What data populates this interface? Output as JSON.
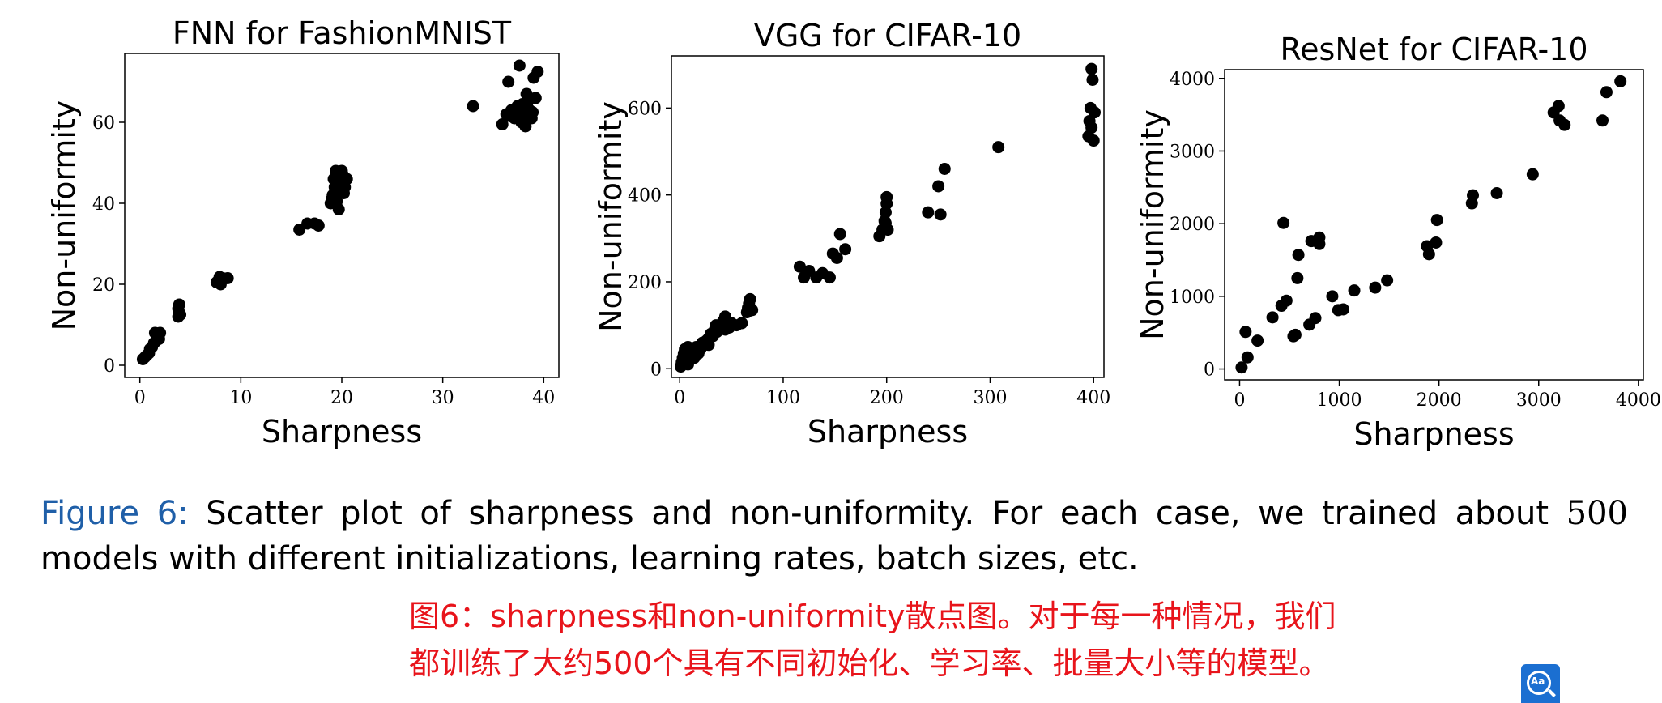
{
  "chart_data": [
    {
      "type": "scatter",
      "title": "FNN for FashionMNIST",
      "xlabel": "Sharpness",
      "ylabel": "Non-uniformity",
      "xlim": [
        -1.5,
        41.5
      ],
      "ylim": [
        -3,
        77
      ],
      "xticks": [
        0,
        10,
        20,
        30,
        40
      ],
      "yticks": [
        0,
        20,
        40,
        60
      ],
      "points": [
        [
          0.3,
          1.5
        ],
        [
          0.5,
          2
        ],
        [
          0.7,
          2.5
        ],
        [
          0.9,
          3
        ],
        [
          1.0,
          4
        ],
        [
          1.2,
          4.5
        ],
        [
          1.4,
          5.5
        ],
        [
          1.6,
          6
        ],
        [
          1.8,
          7
        ],
        [
          1.5,
          8
        ],
        [
          2.0,
          8
        ],
        [
          1.9,
          6.5
        ],
        [
          3.8,
          12
        ],
        [
          3.9,
          13
        ],
        [
          3.8,
          14
        ],
        [
          3.9,
          15
        ],
        [
          4.0,
          12.5
        ],
        [
          7.6,
          20.5
        ],
        [
          7.8,
          21
        ],
        [
          8.0,
          20
        ],
        [
          8.2,
          21.5
        ],
        [
          8.7,
          21.5
        ],
        [
          7.9,
          21.8
        ],
        [
          15.8,
          33.5
        ],
        [
          16.6,
          35
        ],
        [
          17.3,
          35
        ],
        [
          17.7,
          34.5
        ],
        [
          18.9,
          40
        ],
        [
          19.1,
          42
        ],
        [
          19.3,
          44
        ],
        [
          19.2,
          46
        ],
        [
          19.4,
          48
        ],
        [
          19.6,
          43
        ],
        [
          19.8,
          45
        ],
        [
          20.1,
          47
        ],
        [
          20.3,
          44
        ],
        [
          20.5,
          46
        ],
        [
          19.0,
          41
        ],
        [
          19.7,
          38.5
        ],
        [
          20.0,
          48
        ],
        [
          20.2,
          42.5
        ],
        [
          19.5,
          40.5
        ],
        [
          33.0,
          64
        ],
        [
          35.9,
          59.5
        ],
        [
          36.3,
          62
        ],
        [
          36.5,
          70
        ],
        [
          36.8,
          63
        ],
        [
          37.1,
          61
        ],
        [
          37.4,
          64
        ],
        [
          37.6,
          74
        ],
        [
          37.8,
          60
        ],
        [
          38.0,
          62
        ],
        [
          38.2,
          59
        ],
        [
          38.4,
          65
        ],
        [
          38.6,
          63
        ],
        [
          38.8,
          61
        ],
        [
          39.0,
          71
        ],
        [
          39.2,
          66
        ],
        [
          39.4,
          72.5
        ],
        [
          38.3,
          67
        ],
        [
          37.2,
          63
        ],
        [
          36.7,
          61.5
        ],
        [
          38.9,
          62.5
        ],
        [
          37.9,
          64.5
        ]
      ]
    },
    {
      "type": "scatter",
      "title": "VGG for CIFAR-10",
      "xlabel": "Sharpness",
      "ylabel": "Non-uniformity",
      "xlim": [
        -8,
        410
      ],
      "ylim": [
        -20,
        720
      ],
      "xticks": [
        0,
        100,
        200,
        300,
        400
      ],
      "yticks": [
        0,
        200,
        400,
        600
      ],
      "points": [
        [
          1,
          5
        ],
        [
          2,
          15
        ],
        [
          3,
          25
        ],
        [
          4,
          35
        ],
        [
          5,
          45
        ],
        [
          6,
          20
        ],
        [
          8,
          10
        ],
        [
          10,
          30
        ],
        [
          12,
          40
        ],
        [
          14,
          25
        ],
        [
          16,
          50
        ],
        [
          18,
          35
        ],
        [
          20,
          45
        ],
        [
          22,
          60
        ],
        [
          24,
          55
        ],
        [
          26,
          65
        ],
        [
          28,
          70
        ],
        [
          30,
          80
        ],
        [
          32,
          75
        ],
        [
          34,
          90
        ],
        [
          36,
          85
        ],
        [
          38,
          95
        ],
        [
          40,
          100
        ],
        [
          42,
          110
        ],
        [
          44,
          90
        ],
        [
          46,
          100
        ],
        [
          48,
          95
        ],
        [
          50,
          105
        ],
        [
          55,
          100
        ],
        [
          60,
          105
        ],
        [
          8,
          50
        ],
        [
          15,
          45
        ],
        [
          28,
          55
        ],
        [
          35,
          100
        ],
        [
          44,
          120
        ],
        [
          65,
          130
        ],
        [
          66,
          140
        ],
        [
          67,
          150
        ],
        [
          68,
          160
        ],
        [
          70,
          135
        ],
        [
          116,
          235
        ],
        [
          120,
          210
        ],
        [
          125,
          225
        ],
        [
          132,
          210
        ],
        [
          138,
          220
        ],
        [
          145,
          210
        ],
        [
          148,
          265
        ],
        [
          152,
          255
        ],
        [
          155,
          310
        ],
        [
          160,
          275
        ],
        [
          193,
          305
        ],
        [
          196,
          320
        ],
        [
          198,
          340
        ],
        [
          199,
          360
        ],
        [
          200,
          380
        ],
        [
          200,
          395
        ],
        [
          201,
          320
        ],
        [
          199,
          335
        ],
        [
          240,
          360
        ],
        [
          250,
          420
        ],
        [
          252,
          355
        ],
        [
          256,
          460
        ],
        [
          308,
          510
        ],
        [
          395,
          535
        ],
        [
          396,
          570
        ],
        [
          397,
          600
        ],
        [
          398,
          690
        ],
        [
          399,
          665
        ],
        [
          400,
          525
        ],
        [
          401,
          590
        ],
        [
          398,
          555
        ]
      ]
    },
    {
      "type": "scatter",
      "title": "ResNet for CIFAR-10",
      "xlabel": "Sharpness",
      "ylabel": "Non-uniformity",
      "xlim": [
        -150,
        4050
      ],
      "ylim": [
        -150,
        4120
      ],
      "xticks": [
        0,
        1000,
        2000,
        3000,
        4000
      ],
      "yticks": [
        0,
        1000,
        2000,
        3000,
        4000
      ],
      "points": [
        [
          20,
          20
        ],
        [
          60,
          510
        ],
        [
          80,
          160
        ],
        [
          180,
          390
        ],
        [
          330,
          710
        ],
        [
          420,
          870
        ],
        [
          440,
          2010
        ],
        [
          470,
          940
        ],
        [
          540,
          450
        ],
        [
          560,
          470
        ],
        [
          590,
          1570
        ],
        [
          580,
          1250
        ],
        [
          700,
          610
        ],
        [
          720,
          1760
        ],
        [
          760,
          700
        ],
        [
          800,
          1810
        ],
        [
          800,
          1720
        ],
        [
          930,
          1000
        ],
        [
          990,
          810
        ],
        [
          1040,
          820
        ],
        [
          1150,
          1080
        ],
        [
          1360,
          1120
        ],
        [
          1480,
          1220
        ],
        [
          1880,
          1690
        ],
        [
          1900,
          1580
        ],
        [
          1970,
          1740
        ],
        [
          1980,
          2050
        ],
        [
          2330,
          2280
        ],
        [
          2340,
          2390
        ],
        [
          2580,
          2420
        ],
        [
          2940,
          2680
        ],
        [
          3150,
          3530
        ],
        [
          3200,
          3620
        ],
        [
          3210,
          3420
        ],
        [
          3260,
          3360
        ],
        [
          3640,
          3420
        ],
        [
          3680,
          3810
        ],
        [
          3820,
          3960
        ]
      ]
    }
  ],
  "caption": {
    "label": "Figure 6:",
    "text_before": "Scatter plot of sharpness and non-uniformity. For each case, we trained about",
    "number": "500",
    "text_after": "models with different initializations, learning rates, batch sizes, etc."
  },
  "translation": {
    "line1": "图6：sharpness和non-uniformity散点图。对于每一种情况，我们",
    "line2": "都训练了大约500个具有不同初始化、学习率、批量大小等的模型。"
  },
  "translate_button": {
    "label": "Aa",
    "color": "#1b6fd1"
  }
}
